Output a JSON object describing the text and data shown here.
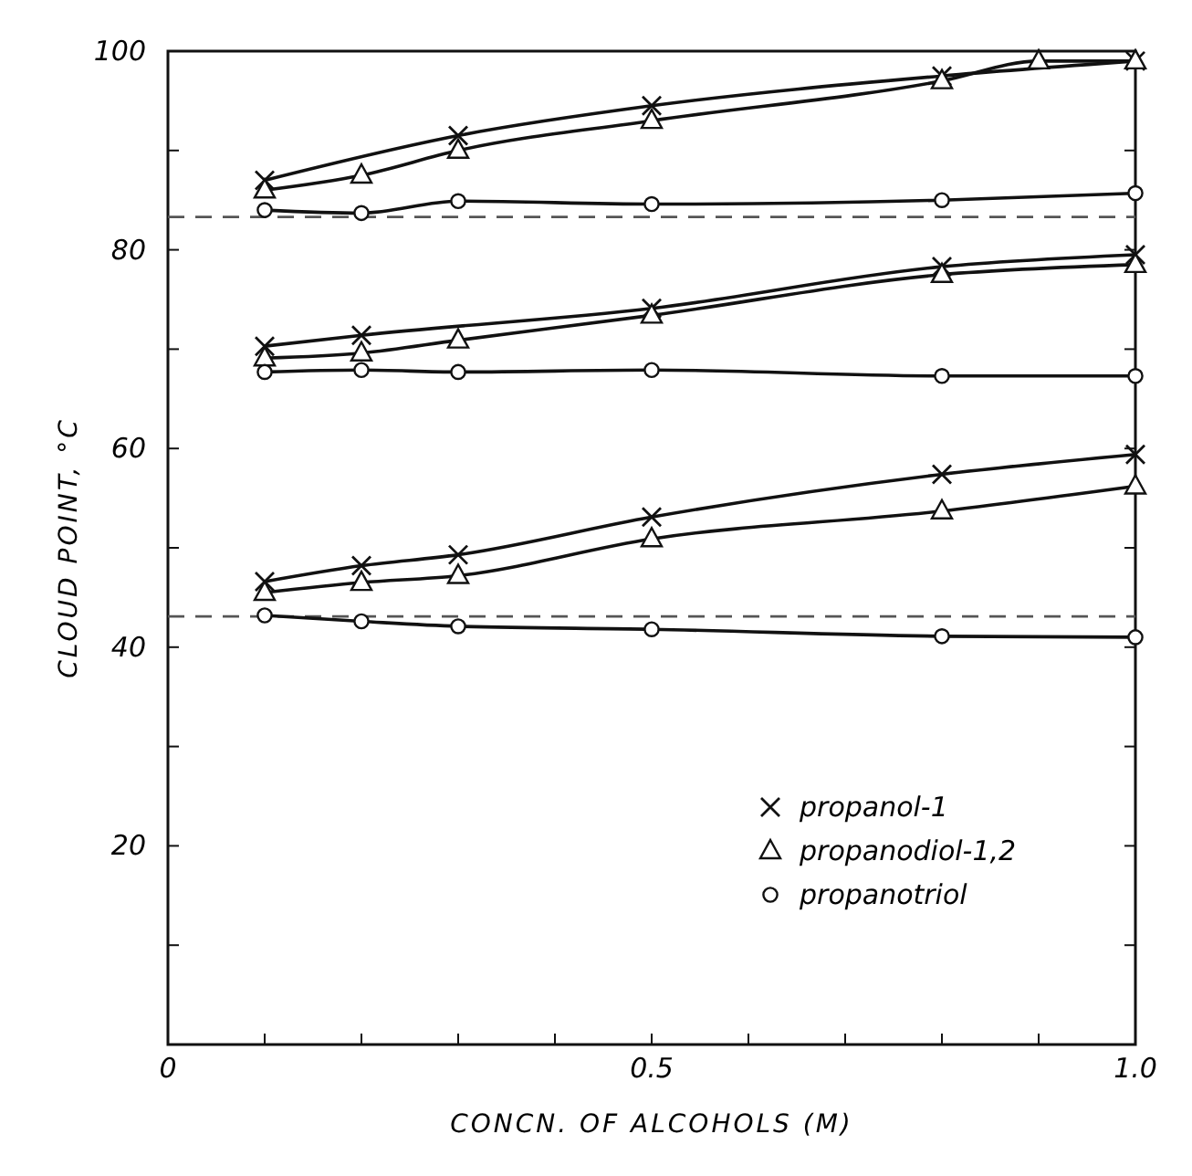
{
  "chart_data": {
    "type": "line",
    "xlabel": "CONCN. OF ALCOHOLS (M)",
    "ylabel": "CLOUD POINT, °C",
    "xlim": [
      0,
      1
    ],
    "ylim": [
      0,
      100
    ],
    "xticks": [
      {
        "value": 0,
        "label": "0"
      },
      {
        "value": 0.1,
        "label": null
      },
      {
        "value": 0.2,
        "label": null
      },
      {
        "value": 0.3,
        "label": null
      },
      {
        "value": 0.4,
        "label": null
      },
      {
        "value": 0.5,
        "label": "0.5"
      },
      {
        "value": 0.6,
        "label": null
      },
      {
        "value": 0.7,
        "label": null
      },
      {
        "value": 0.8,
        "label": null
      },
      {
        "value": 0.9,
        "label": null
      },
      {
        "value": 1,
        "label": "1.0"
      }
    ],
    "yticks": [
      {
        "value": 10,
        "label": null
      },
      20,
      {
        "value": 30,
        "label": null
      },
      40,
      {
        "value": 50,
        "label": null
      },
      60,
      {
        "value": 70,
        "label": null
      },
      80,
      {
        "value": 90,
        "label": null
      },
      100
    ],
    "grid": false,
    "legend": "bottom right",
    "line_style": "solid",
    "ref_lines": [
      {
        "axis": "y",
        "value": 83.3,
        "line_style": "dashed",
        "color": "#555555"
      },
      {
        "axis": "y",
        "value": 43.1,
        "line_style": "dashed",
        "color": "#555555"
      }
    ],
    "series": [
      {
        "name": "propanol-1",
        "color": "#111111",
        "marker": "cross",
        "x": [
          0.1,
          0.3,
          0.5,
          0.8,
          1.0
        ],
        "values": [
          87,
          91.5,
          94.5,
          97.5,
          99
        ]
      },
      {
        "name": "propanodiol-1,2",
        "color": "#111111",
        "marker": "triangle",
        "x": [
          0.1,
          0.2,
          0.3,
          0.5,
          0.8,
          0.9,
          1.0
        ],
        "values": [
          86,
          87.5,
          90,
          93,
          97,
          99,
          99
        ]
      },
      {
        "name": "propanotriol",
        "color": "#111111",
        "marker": "circle",
        "x": [
          0.1,
          0.2,
          0.3,
          0.5,
          0.8,
          1.0
        ],
        "values": [
          84,
          83.7,
          84.9,
          84.6,
          85,
          85.7
        ]
      },
      {
        "color": "#111111",
        "marker": "cross",
        "x": [
          0.1,
          0.2,
          0.5,
          0.8,
          1.0
        ],
        "values": [
          70.3,
          71.4,
          74.1,
          78.3,
          79.5
        ]
      },
      {
        "color": "#111111",
        "marker": "triangle",
        "x": [
          0.1,
          0.2,
          0.3,
          0.5,
          0.8,
          1.0
        ],
        "values": [
          69.1,
          69.6,
          70.9,
          73.4,
          77.5,
          78.5
        ]
      },
      {
        "color": "#111111",
        "marker": "circle",
        "x": [
          0.1,
          0.2,
          0.3,
          0.5,
          0.8,
          1.0
        ],
        "values": [
          67.7,
          67.9,
          67.7,
          67.9,
          67.3,
          67.3
        ]
      },
      {
        "color": "#111111",
        "marker": "cross",
        "x": [
          0.1,
          0.2,
          0.3,
          0.5,
          0.8,
          1.0
        ],
        "values": [
          46.6,
          48.2,
          49.3,
          53.1,
          57.4,
          59.4
        ]
      },
      {
        "color": "#111111",
        "marker": "triangle",
        "x": [
          0.1,
          0.2,
          0.3,
          0.5,
          0.8,
          1.0
        ],
        "values": [
          45.5,
          46.5,
          47.2,
          50.9,
          53.7,
          56.2
        ]
      },
      {
        "color": "#111111",
        "marker": "circle",
        "x": [
          0.1,
          0.2,
          0.3,
          0.5,
          0.8,
          1.0
        ],
        "values": [
          43.2,
          42.6,
          42.1,
          41.8,
          41.1,
          41.0
        ]
      }
    ]
  }
}
